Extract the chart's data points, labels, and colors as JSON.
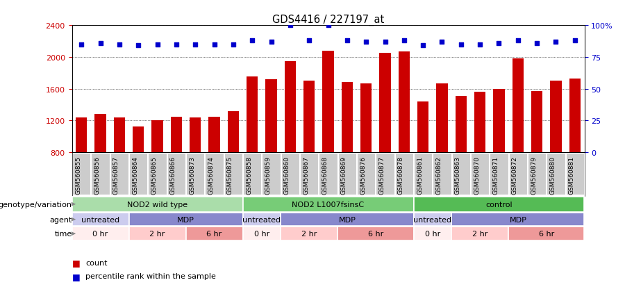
{
  "title": "GDS4416 / 227197_at",
  "samples": [
    "GSM560855",
    "GSM560856",
    "GSM560857",
    "GSM560864",
    "GSM560865",
    "GSM560866",
    "GSM560873",
    "GSM560874",
    "GSM560875",
    "GSM560858",
    "GSM560859",
    "GSM560860",
    "GSM560867",
    "GSM560868",
    "GSM560869",
    "GSM560876",
    "GSM560877",
    "GSM560878",
    "GSM560861",
    "GSM560862",
    "GSM560863",
    "GSM560870",
    "GSM560871",
    "GSM560872",
    "GSM560879",
    "GSM560880",
    "GSM560881"
  ],
  "counts": [
    1240,
    1280,
    1240,
    1120,
    1200,
    1250,
    1240,
    1250,
    1320,
    1750,
    1720,
    1950,
    1700,
    2080,
    1680,
    1670,
    2050,
    2070,
    1440,
    1670,
    1510,
    1560,
    1600,
    1980,
    1570,
    1700,
    1730
  ],
  "percentile": [
    85,
    86,
    85,
    84,
    85,
    85,
    85,
    85,
    85,
    88,
    87,
    100,
    88,
    100,
    88,
    87,
    87,
    88,
    84,
    87,
    85,
    85,
    86,
    88,
    86,
    87,
    88
  ],
  "ylim_left": [
    800,
    2400
  ],
  "ylim_right": [
    0,
    100
  ],
  "yticks_left": [
    800,
    1200,
    1600,
    2000,
    2400
  ],
  "yticks_right": [
    0,
    25,
    50,
    75,
    100
  ],
  "bar_color": "#cc0000",
  "dot_color": "#0000cc",
  "background_color": "#ffffff",
  "xtick_bg": "#cccccc",
  "genotype_groups": [
    {
      "label": "NOD2 wild type",
      "start": 0,
      "end": 9,
      "color": "#aaddaa"
    },
    {
      "label": "NOD2 L1007fsinsC",
      "start": 9,
      "end": 18,
      "color": "#77cc77"
    },
    {
      "label": "control",
      "start": 18,
      "end": 27,
      "color": "#55bb55"
    }
  ],
  "agent_groups": [
    {
      "label": "untreated",
      "start": 0,
      "end": 3,
      "color": "#ccccee"
    },
    {
      "label": "MDP",
      "start": 3,
      "end": 9,
      "color": "#8888cc"
    },
    {
      "label": "untreated",
      "start": 9,
      "end": 11,
      "color": "#ccccee"
    },
    {
      "label": "MDP",
      "start": 11,
      "end": 18,
      "color": "#8888cc"
    },
    {
      "label": "untreated",
      "start": 18,
      "end": 20,
      "color": "#ccccee"
    },
    {
      "label": "MDP",
      "start": 20,
      "end": 27,
      "color": "#8888cc"
    }
  ],
  "time_groups": [
    {
      "label": "0 hr",
      "start": 0,
      "end": 3,
      "color": "#ffeeee"
    },
    {
      "label": "2 hr",
      "start": 3,
      "end": 6,
      "color": "#ffcccc"
    },
    {
      "label": "6 hr",
      "start": 6,
      "end": 9,
      "color": "#ee9999"
    },
    {
      "label": "0 hr",
      "start": 9,
      "end": 11,
      "color": "#ffeeee"
    },
    {
      "label": "2 hr",
      "start": 11,
      "end": 14,
      "color": "#ffcccc"
    },
    {
      "label": "6 hr",
      "start": 14,
      "end": 18,
      "color": "#ee9999"
    },
    {
      "label": "0 hr",
      "start": 18,
      "end": 20,
      "color": "#ffeeee"
    },
    {
      "label": "2 hr",
      "start": 20,
      "end": 23,
      "color": "#ffcccc"
    },
    {
      "label": "6 hr",
      "start": 23,
      "end": 27,
      "color": "#ee9999"
    }
  ],
  "legend_count_label": "count",
  "legend_pct_label": "percentile rank within the sample"
}
